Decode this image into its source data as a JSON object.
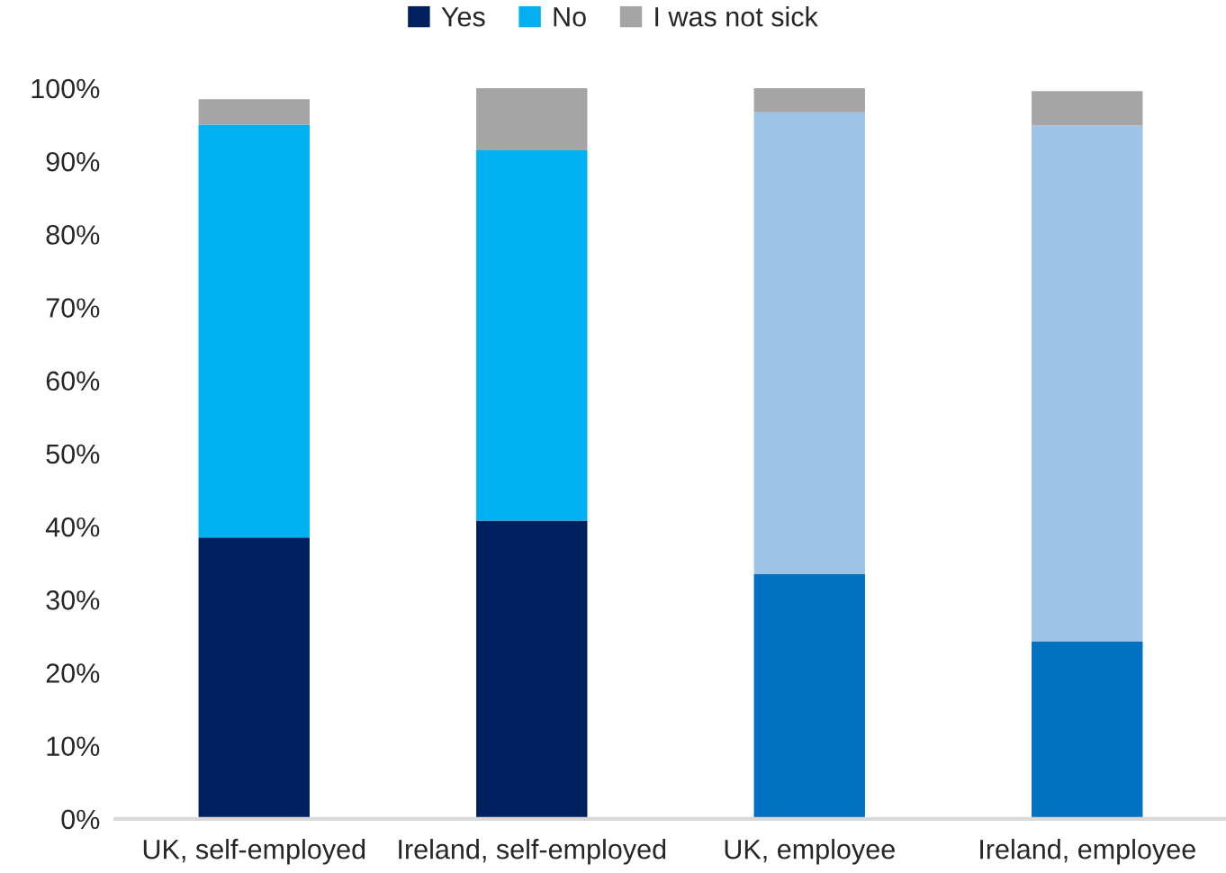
{
  "chart_data": {
    "type": "bar",
    "stacked": true,
    "categories": [
      "UK, self-employed",
      "Ireland, self-employed",
      "UK, employee",
      "Ireland, employee"
    ],
    "series": [
      {
        "name": "Yes",
        "colors": [
          "#002060",
          "#002060",
          "#0070c0",
          "#0070c0"
        ],
        "values": [
          38.5,
          40.8,
          33.5,
          24.3
        ]
      },
      {
        "name": "No",
        "colors": [
          "#00b0f0",
          "#00b0f0",
          "#9dc3e6",
          "#9dc3e6"
        ],
        "values": [
          56.5,
          50.7,
          63.2,
          70.6
        ]
      },
      {
        "name": "I was not sick",
        "colors": [
          "#a5a5a5",
          "#a5a5a5",
          "#a5a5a5",
          "#a5a5a5"
        ],
        "values": [
          3.5,
          8.5,
          3.3,
          4.7
        ]
      }
    ],
    "ylim": [
      0,
      100
    ],
    "yticks": [
      {
        "value": 0,
        "label": "0%"
      },
      {
        "value": 10,
        "label": "10%"
      },
      {
        "value": 20,
        "label": "20%"
      },
      {
        "value": 30,
        "label": "30%"
      },
      {
        "value": 40,
        "label": "40%"
      },
      {
        "value": 50,
        "label": "50%"
      },
      {
        "value": 60,
        "label": "60%"
      },
      {
        "value": 70,
        "label": "70%"
      },
      {
        "value": 80,
        "label": "80%"
      },
      {
        "value": 90,
        "label": "90%"
      },
      {
        "value": 100,
        "label": "100%"
      }
    ],
    "legend": "top",
    "grid": false
  }
}
